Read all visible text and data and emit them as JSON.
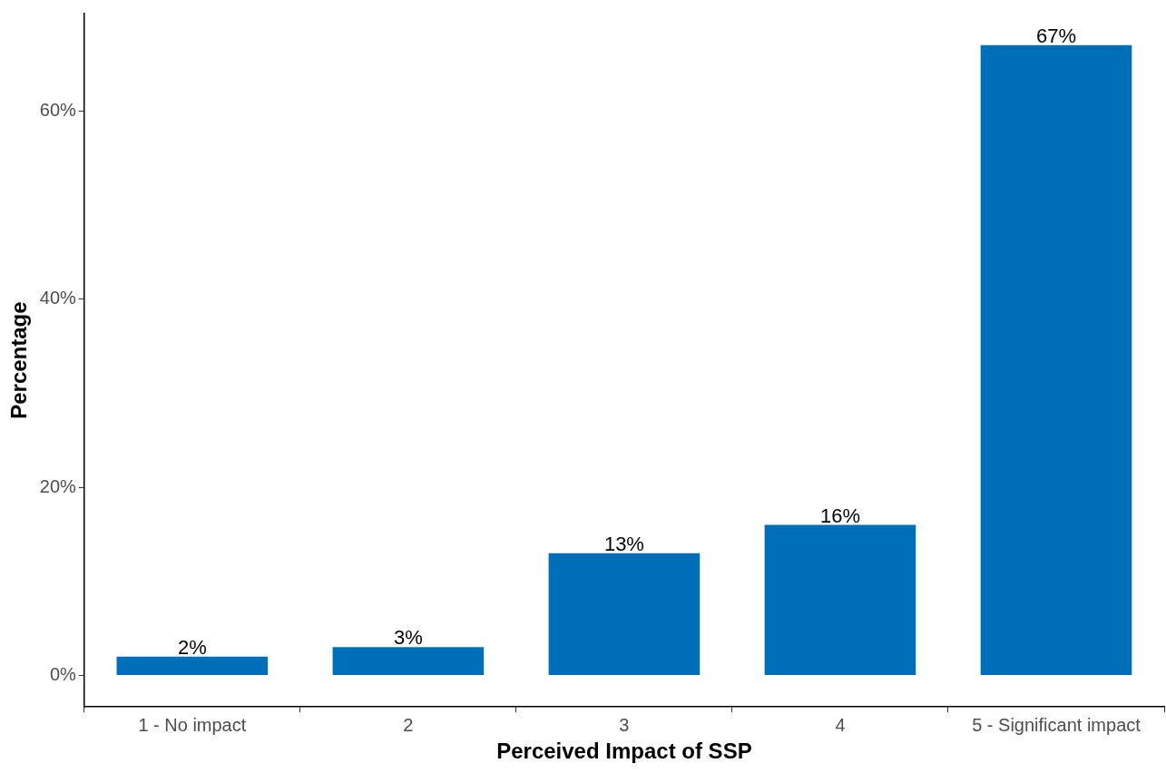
{
  "chart_data": {
    "type": "bar",
    "xlabel": "Perceived Impact of SSP",
    "ylabel": "Percentage",
    "categories": [
      "1 - No impact",
      "2",
      "3",
      "4",
      "5 - Significant impact"
    ],
    "values": [
      2,
      3,
      13,
      16,
      67
    ],
    "value_labels": [
      "2%",
      "3%",
      "13%",
      "16%",
      "67%"
    ],
    "color": "#006fb9",
    "ylim": [
      -3.35,
      70.35
    ],
    "yticks": [
      {
        "value": 0,
        "label": "0%"
      },
      {
        "value": 20,
        "label": "20%"
      },
      {
        "value": 40,
        "label": "40%"
      },
      {
        "value": 60,
        "label": "60%"
      }
    ],
    "grid": false
  }
}
